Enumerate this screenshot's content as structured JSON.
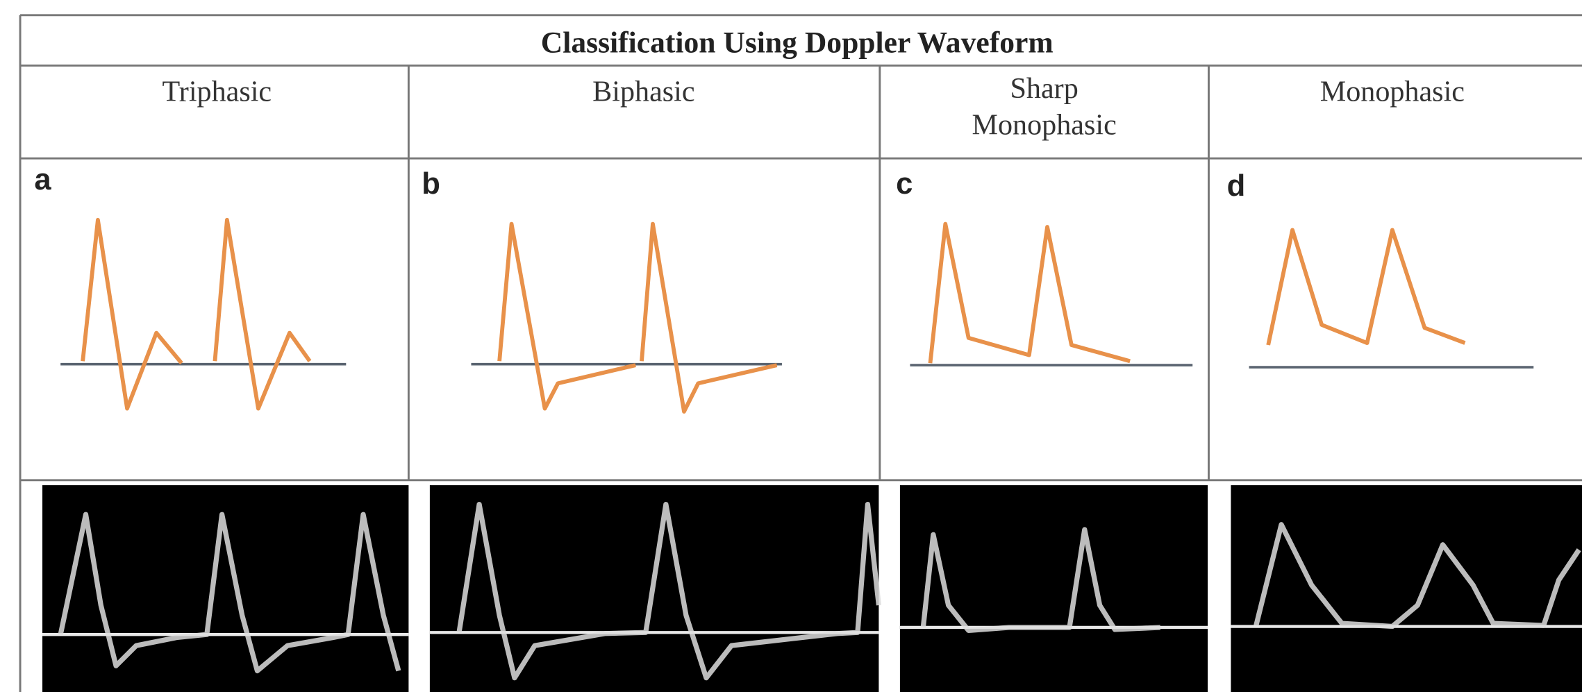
{
  "title": "Classification Using Doppler Waveform",
  "columns": [
    {
      "header": "Triphasic",
      "panel": "a"
    },
    {
      "header": "Biphasic",
      "panel": "b"
    },
    {
      "header": "Sharp Monophasic",
      "panel": "c"
    },
    {
      "header": "Monophasic",
      "panel": "d"
    }
  ]
}
